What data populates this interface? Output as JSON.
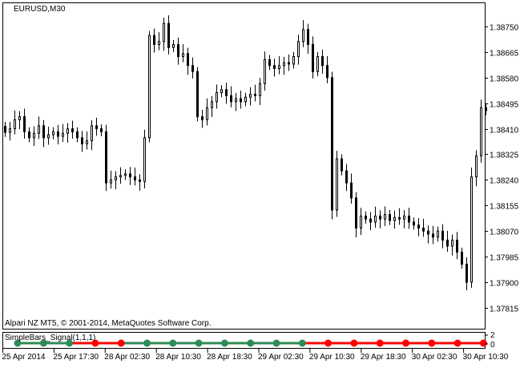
{
  "chart": {
    "symbol_label": "EURUSD,M30",
    "indicator_label": "SimpleBars_Signal(1,1,1)",
    "copyright": "Alpari NZ MT5, © 2001-2014, MetaQuotes Software Corp.",
    "indicator_axis": [
      "2",
      "0"
    ],
    "colors": {
      "background": "#ffffff",
      "candle": "#000000",
      "buy_signal": "#2e8b57",
      "sell_signal": "#ff0000"
    }
  },
  "chart_data": {
    "type": "candlestick",
    "price_ticks": [
      "1.38750",
      "1.38665",
      "1.38580",
      "1.38495",
      "1.38410",
      "1.38325",
      "1.38240",
      "1.38155",
      "1.38070",
      "1.37985",
      "1.37900",
      "1.37815"
    ],
    "time_ticks": [
      "25 Apr 2014",
      "25 Apr 17:30",
      "28 Apr 02:30",
      "28 Apr 10:30",
      "28 Apr 18:30",
      "29 Apr 02:30",
      "29 Apr 10:30",
      "29 Apr 18:30",
      "30 Apr 02:30",
      "30 Apr 10:30"
    ],
    "closes": [
      1.38398,
      1.3841,
      1.3844,
      1.3845,
      1.384,
      1.3838,
      1.38395,
      1.3842,
      1.3838,
      1.3839,
      1.384,
      1.38385,
      1.38395,
      1.3841,
      1.384,
      1.3838,
      1.3836,
      1.3837,
      1.3842,
      1.3841,
      1.384,
      1.3823,
      1.3824,
      1.3825,
      1.38255,
      1.3826,
      1.3825,
      1.3824,
      1.38235,
      1.3838,
      1.3872,
      1.3869,
      1.387,
      1.3876,
      1.3868,
      1.3869,
      1.3865,
      1.3866,
      1.3862,
      1.386,
      1.3845,
      1.3844,
      1.3848,
      1.385,
      1.3853,
      1.3854,
      1.3852,
      1.385,
      1.3851,
      1.385,
      1.38515,
      1.38525,
      1.3852,
      1.3856,
      1.3864,
      1.3862,
      1.3861,
      1.3862,
      1.3863,
      1.38625,
      1.3865,
      1.387,
      1.3874,
      1.3869,
      1.386,
      1.3865,
      1.3862,
      1.3858,
      1.3814,
      1.3831,
      1.3827,
      1.3823,
      1.3818,
      1.3808,
      1.3812,
      1.3811,
      1.381,
      1.3812,
      1.3811,
      1.38125,
      1.38105,
      1.38115,
      1.3811,
      1.3812,
      1.381,
      1.3809,
      1.3808,
      1.3807,
      1.3806,
      1.3805,
      1.3807,
      1.3804,
      1.3802,
      1.3804,
      1.38,
      1.3796,
      1.379,
      1.3825,
      1.3832,
      1.3848,
      1.3847
    ],
    "signals": [
      "buy",
      "buy",
      "buy",
      "sell",
      "sell",
      "buy",
      "buy",
      "buy",
      "buy",
      "buy",
      "buy",
      "buy",
      "sell",
      "sell",
      "sell",
      "sell",
      "sell",
      "sell",
      "sell"
    ]
  }
}
